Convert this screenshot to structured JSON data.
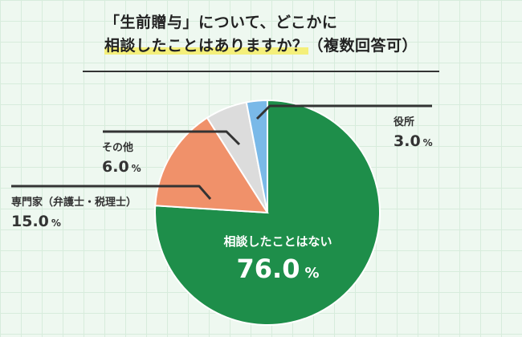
{
  "title": {
    "line1": "「生前贈与」について、どこかに",
    "line2": "相談したことはありますか？",
    "line2_suffix": "（複数回答可）"
  },
  "chart_data": {
    "type": "pie",
    "unit": "%",
    "slices": [
      {
        "label": "相談したことはない",
        "value": 76.0,
        "color": "#1e8e4a"
      },
      {
        "label": "専門家（弁護士・税理士）",
        "value": 15.0,
        "color": "#f0916a"
      },
      {
        "label": "その他",
        "value": 6.0,
        "color": "#dcdcdc"
      },
      {
        "label": "役所",
        "value": 3.0,
        "color": "#7ab9e8"
      }
    ],
    "slice_border_color": "#ffffff",
    "leader_line_color": "#333333"
  }
}
